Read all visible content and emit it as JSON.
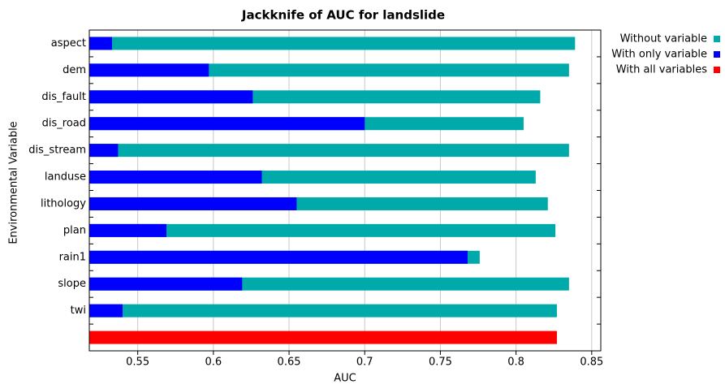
{
  "chart_data": {
    "type": "bar",
    "orientation": "horizontal",
    "title": "Jackknife of AUC for landslide",
    "xlabel": "AUC",
    "ylabel": "Environmental Variable",
    "categories": [
      "aspect",
      "dem",
      "dis_fault",
      "dis_road",
      "dis_stream",
      "landuse",
      "lithology",
      "plan",
      "rain1",
      "slope",
      "twi",
      null
    ],
    "series": [
      {
        "name": "Without variable",
        "color": "#00aaaa",
        "values": [
          0.839,
          0.835,
          0.816,
          0.805,
          0.835,
          0.813,
          0.821,
          0.826,
          0.776,
          0.835,
          0.827,
          null
        ]
      },
      {
        "name": "With only variable",
        "color": "#0000ff",
        "values": [
          0.533,
          0.597,
          0.626,
          0.7,
          0.537,
          0.632,
          0.655,
          0.569,
          0.768,
          0.619,
          0.54,
          null
        ]
      },
      {
        "name": "With all variables",
        "color": "#ff0000",
        "values": [
          null,
          null,
          null,
          null,
          null,
          null,
          null,
          null,
          null,
          null,
          null,
          0.827
        ]
      }
    ],
    "xlim": [
      0.518,
      0.856
    ],
    "xticks": [
      0.55,
      0.6,
      0.65,
      0.7,
      0.75,
      0.8,
      0.85
    ],
    "grid": true,
    "legend": "right"
  }
}
